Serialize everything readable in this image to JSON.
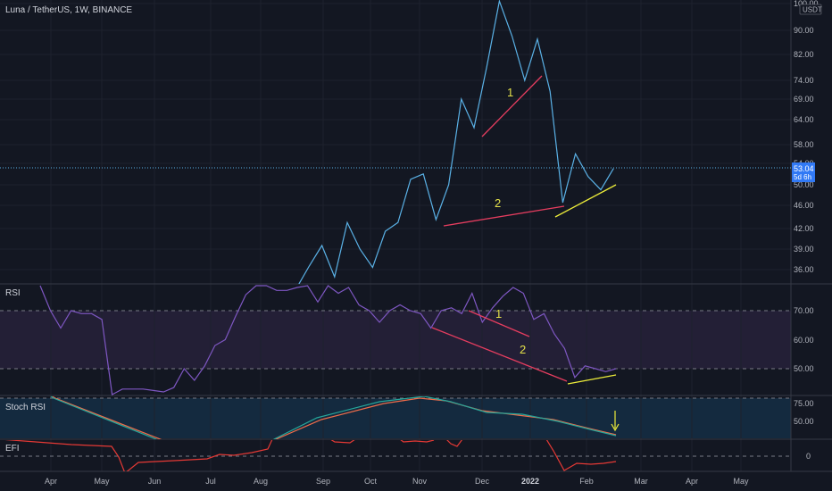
{
  "header": {
    "title": "Luna / TetherUS, 1W, BINANCE",
    "currency": "USDT"
  },
  "price_tag": {
    "value": "53.04",
    "countdown": "5d 6h"
  },
  "panes": {
    "rsi": "RSI",
    "stoch": "Stoch RSI",
    "efi": "EFI"
  },
  "annotations": {
    "one": "1",
    "two": "2"
  },
  "colors": {
    "background": "#131722",
    "grid": "#2a2e39",
    "price_line": "#5ab1e6",
    "rsi_line": "#7e57c2",
    "rsi_band": "#2a2540",
    "stoch_bg": "#142a3f",
    "stoch_k": "#26a69a",
    "stoch_d": "#ef6c4a",
    "efi_line": "#e53935",
    "red_trend": "#e53d5f",
    "yellow_trend": "#ecec3a",
    "tag_bg": "#3179f5"
  },
  "chart_data": {
    "type": "line",
    "x_ticks": [
      "Apr",
      "May",
      "Jun",
      "Jul",
      "Aug",
      "Sep",
      "Oct",
      "Nov",
      "Dec",
      "2022",
      "Feb",
      "Mar",
      "Apr",
      "May"
    ],
    "price": {
      "y_ticks": [
        "100.00",
        "90.00",
        "82.00",
        "74.00",
        "69.00",
        "64.00",
        "58.00",
        "54.00",
        "50.00",
        "46.00",
        "42.00",
        "39.00",
        "36.00"
      ],
      "series": [
        {
          "x": 0,
          "y": 32
        },
        {
          "x": 1,
          "y": 33.5
        },
        {
          "x": 2,
          "y": 36.5
        },
        {
          "x": 3,
          "y": 39.5
        },
        {
          "x": 4,
          "y": 35
        },
        {
          "x": 5,
          "y": 43
        },
        {
          "x": 6,
          "y": 39
        },
        {
          "x": 7,
          "y": 36.3
        },
        {
          "x": 8,
          "y": 41.6
        },
        {
          "x": 9,
          "y": 43
        },
        {
          "x": 10,
          "y": 51
        },
        {
          "x": 11,
          "y": 52
        },
        {
          "x": 12,
          "y": 43.5
        },
        {
          "x": 13,
          "y": 50
        },
        {
          "x": 14,
          "y": 69
        },
        {
          "x": 15,
          "y": 62
        },
        {
          "x": 16,
          "y": 78
        },
        {
          "x": 17,
          "y": 101
        },
        {
          "x": 18,
          "y": 88
        },
        {
          "x": 19,
          "y": 74
        },
        {
          "x": 20,
          "y": 87
        },
        {
          "x": 21,
          "y": 71
        },
        {
          "x": 22,
          "y": 46.5
        },
        {
          "x": 23,
          "y": 56
        },
        {
          "x": 24,
          "y": 51.5
        },
        {
          "x": 25,
          "y": 49
        },
        {
          "x": 26,
          "y": 53
        }
      ],
      "last": 53.04
    },
    "rsi": {
      "y_ticks": [
        "70.00",
        "60.00",
        "50.00"
      ],
      "band": [
        50,
        70
      ],
      "values": [
        79,
        70,
        64,
        70,
        69,
        69,
        67,
        39,
        43,
        43,
        43,
        42.5,
        42,
        43.5,
        50,
        46,
        51,
        58,
        60,
        68,
        75.5,
        80,
        81,
        77,
        77,
        78,
        79,
        73,
        80,
        76,
        78,
        72,
        70,
        66,
        70,
        72,
        70,
        69,
        64,
        70,
        71,
        69,
        76,
        66,
        71,
        75,
        78,
        76,
        67,
        69,
        62,
        57,
        47,
        51,
        50,
        49,
        50
      ]
    },
    "stoch_rsi": {
      "y_ticks": [
        "75.00",
        "50.00"
      ],
      "note": "K and D lines oscillating"
    },
    "efi": {
      "y_ticks": [
        "0"
      ]
    }
  }
}
